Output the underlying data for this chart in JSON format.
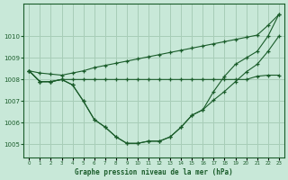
{
  "title": "Graphe pression niveau de la mer (hPa)",
  "background_color": "#c8e8d8",
  "grid_color": "#a8cdb8",
  "line_color": "#1a5c2a",
  "x_labels": [
    "0",
    "1",
    "2",
    "3",
    "4",
    "5",
    "6",
    "7",
    "8",
    "9",
    "10",
    "11",
    "12",
    "13",
    "14",
    "15",
    "16",
    "17",
    "18",
    "19",
    "20",
    "21",
    "22",
    "23"
  ],
  "ylim": [
    1004.4,
    1011.5
  ],
  "yticks": [
    1005,
    1006,
    1007,
    1008,
    1009,
    1010
  ],
  "series_flat": [
    1008.4,
    1007.9,
    1007.9,
    1008.0,
    1008.0,
    1008.0,
    1008.0,
    1008.0,
    1008.0,
    1008.0,
    1008.0,
    1008.0,
    1008.0,
    1008.0,
    1008.0,
    1008.0,
    1008.0,
    1008.0,
    1008.0,
    1008.0,
    1008.0,
    1008.15,
    1008.2,
    1008.2
  ],
  "series_diagonal": [
    1008.4,
    1008.3,
    1008.25,
    1008.2,
    1008.3,
    1008.4,
    1008.55,
    1008.65,
    1008.75,
    1008.85,
    1008.95,
    1009.05,
    1009.15,
    1009.25,
    1009.35,
    1009.45,
    1009.55,
    1009.65,
    1009.75,
    1009.85,
    1009.95,
    1010.05,
    1010.5,
    1011.0
  ],
  "series_dip": [
    1008.4,
    1007.9,
    1007.9,
    1008.0,
    1007.75,
    1007.0,
    1006.15,
    1005.8,
    1005.35,
    1005.05,
    1005.05,
    1005.15,
    1005.15,
    1005.35,
    1005.8,
    1006.35,
    1006.6,
    1007.05,
    1007.45,
    1007.9,
    1008.35,
    1008.7,
    1009.3,
    1010.0
  ],
  "series_dip2": [
    1008.4,
    1007.9,
    1007.9,
    1008.0,
    1007.75,
    1007.0,
    1006.15,
    1005.8,
    1005.35,
    1005.05,
    1005.05,
    1005.15,
    1005.15,
    1005.35,
    1005.8,
    1006.35,
    1006.6,
    1007.45,
    1008.15,
    1008.7,
    1009.0,
    1009.3,
    1010.0,
    1011.0
  ]
}
